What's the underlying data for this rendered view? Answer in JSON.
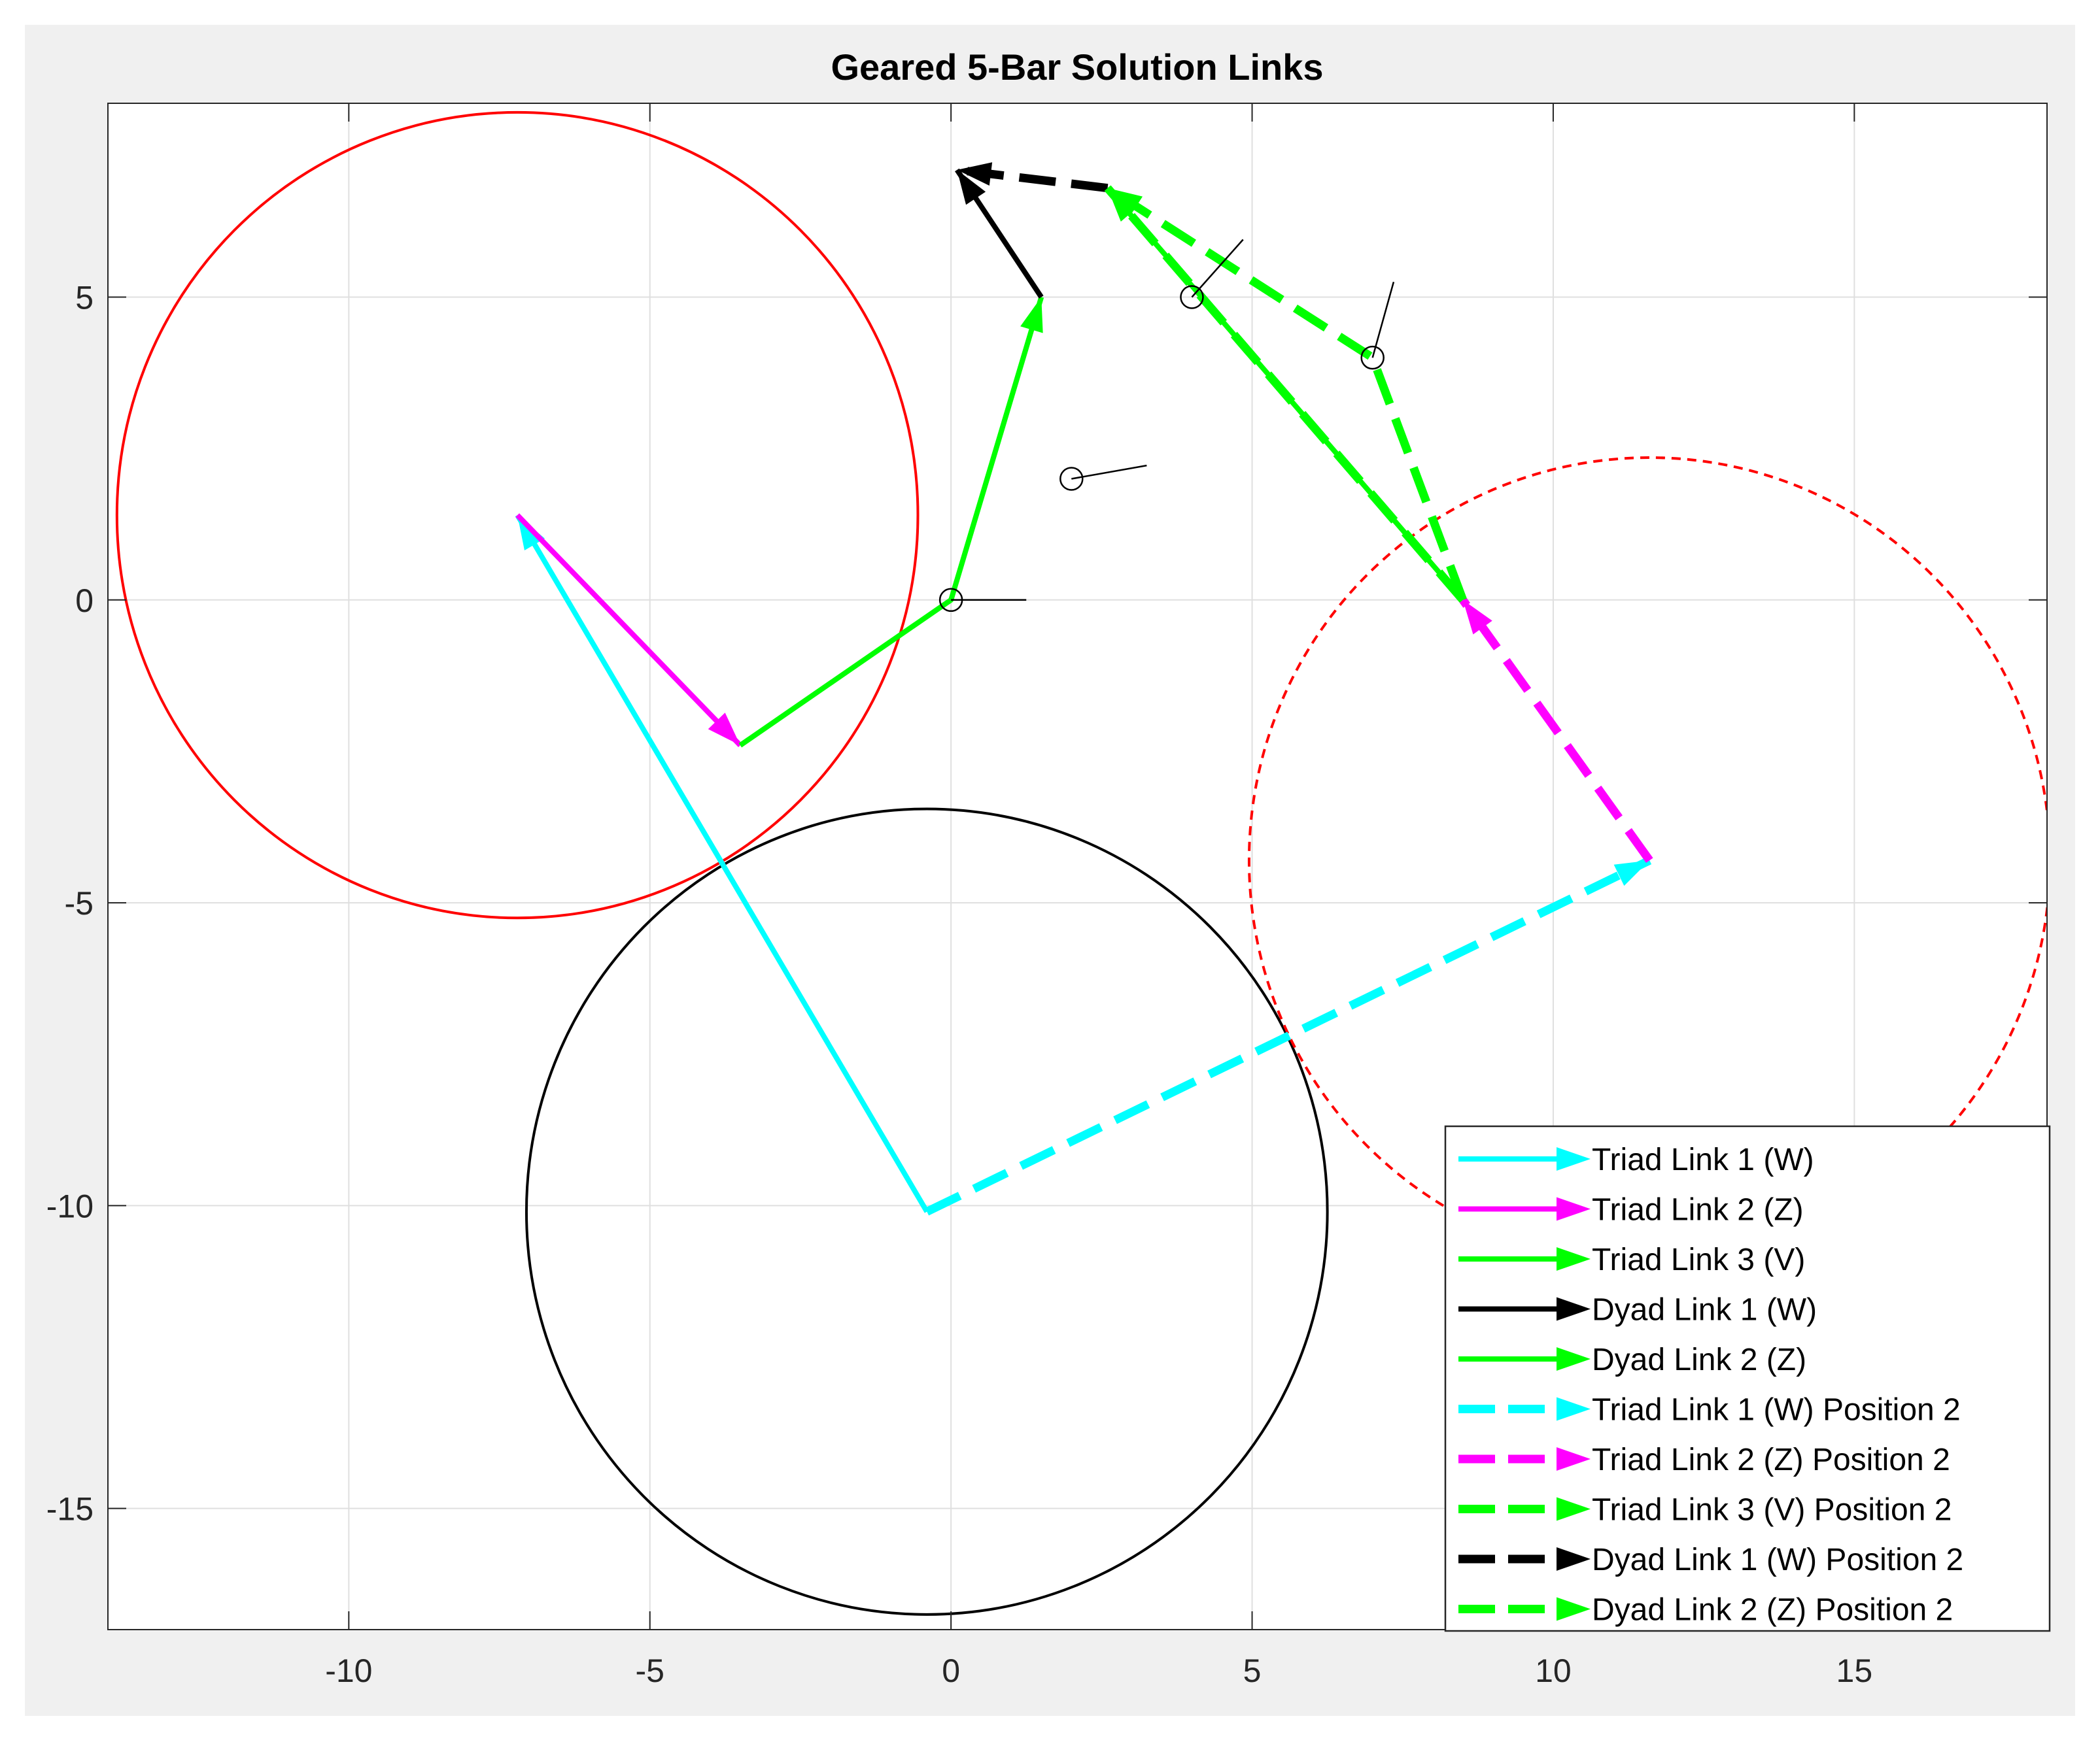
{
  "chart_data": {
    "type": "line",
    "title": "Geared 5-Bar Solution Links",
    "xlabel": "",
    "ylabel": "",
    "xlim": [
      -14,
      18.2
    ],
    "ylim": [
      -17,
      8.2
    ],
    "xticks": [
      -10,
      -5,
      0,
      5,
      10,
      15
    ],
    "yticks": [
      5,
      0,
      -5,
      -10,
      -15
    ],
    "xtick_labels": [
      "-10",
      "-5",
      "0",
      "5",
      "10",
      "15"
    ],
    "ytick_labels": [
      "5",
      "0",
      "-5",
      "-10",
      "-15"
    ],
    "grid": true,
    "legend_position": "bottom-right",
    "series": [
      {
        "name": "Triad Link 1 (W)",
        "color": "#00ffff",
        "dashed": false,
        "arrow": true,
        "points": [
          [
            -0.4,
            -10.1
          ],
          [
            -7.2,
            1.4
          ]
        ]
      },
      {
        "name": "Triad Link 2 (Z)",
        "color": "#ff00ff",
        "dashed": false,
        "arrow": true,
        "points": [
          [
            -7.2,
            1.4
          ],
          [
            -3.5,
            -2.4
          ]
        ]
      },
      {
        "name": "Triad Link 3 (V)",
        "color": "#00ff00",
        "dashed": false,
        "arrow": true,
        "points": [
          [
            -3.5,
            -2.4
          ],
          [
            0,
            0
          ],
          [
            1.5,
            5.0
          ]
        ]
      },
      {
        "name": "Dyad Link 1 (W)",
        "color": "#000000",
        "dashed": false,
        "arrow": true,
        "points": [
          [
            1.5,
            5.0
          ],
          [
            0.1,
            7.1
          ]
        ]
      },
      {
        "name": "Dyad Link 2 (Z)",
        "color": "#00ff00",
        "dashed": false,
        "arrow": true,
        "points": [
          [
            8.5,
            0.0
          ],
          [
            2.6,
            6.8
          ]
        ]
      },
      {
        "name": "Triad Link 1 (W) Position 2",
        "color": "#00ffff",
        "dashed": true,
        "arrow": true,
        "points": [
          [
            -0.4,
            -10.1
          ],
          [
            11.6,
            -4.3
          ]
        ]
      },
      {
        "name": "Triad Link 2 (Z) Position 2",
        "color": "#ff00ff",
        "dashed": true,
        "arrow": true,
        "points": [
          [
            11.6,
            -4.3
          ],
          [
            8.5,
            0.0
          ]
        ]
      },
      {
        "name": "Triad Link 3 (V) Position 2",
        "color": "#00ff00",
        "dashed": true,
        "arrow": true,
        "points": [
          [
            8.5,
            0.0
          ],
          [
            7.0,
            4.0
          ],
          [
            2.6,
            6.8
          ]
        ]
      },
      {
        "name": "Dyad Link 1 (W) Position 2",
        "color": "#000000",
        "dashed": true,
        "arrow": true,
        "points": [
          [
            2.6,
            6.8
          ],
          [
            0.1,
            7.1
          ]
        ]
      },
      {
        "name": "Dyad Link 2 (Z) Position 2",
        "color": "#00ff00",
        "dashed": true,
        "arrow": true,
        "points": [
          [
            8.5,
            0.0
          ],
          [
            2.6,
            6.8
          ]
        ]
      }
    ],
    "circles": [
      {
        "cx": -7.2,
        "cy": 1.4,
        "r": 6.65,
        "color": "#ff0000",
        "dashed": false
      },
      {
        "cx": -0.4,
        "cy": -10.1,
        "r": 6.65,
        "color": "#000000",
        "dashed": false
      },
      {
        "cx": 11.6,
        "cy": -4.3,
        "r": 6.65,
        "color": "#ff0000",
        "dashed": true
      }
    ],
    "precision_points": [
      {
        "x": 0,
        "y": 0,
        "dx": 1.25,
        "dy": 0.0
      },
      {
        "x": 2.0,
        "y": 2.0,
        "dx": 1.25,
        "dy": 0.22
      },
      {
        "x": 4.0,
        "y": 5.0,
        "dx": 0.85,
        "dy": 0.95
      },
      {
        "x": 7.0,
        "y": 4.0,
        "dx": 0.35,
        "dy": 1.25
      }
    ]
  }
}
